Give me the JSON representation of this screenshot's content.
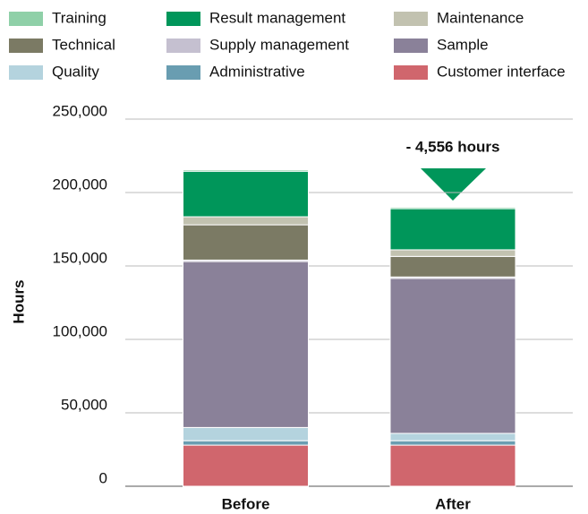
{
  "chart_data": {
    "type": "stacked_bar",
    "y_label": "Hours",
    "categories": [
      "Before",
      "After"
    ],
    "series": [
      {
        "name": "Training",
        "color": "#8fd0a8",
        "values": [
          1000,
          1000
        ]
      },
      {
        "name": "Result management",
        "color": "#00965a",
        "values": [
          31000,
          28000
        ]
      },
      {
        "name": "Maintenance",
        "color": "#c2c2b0",
        "values": [
          5500,
          4500
        ]
      },
      {
        "name": "Technical",
        "color": "#7b7a64",
        "values": [
          24000,
          14000
        ]
      },
      {
        "name": "Supply management",
        "color": "#c5c0d0",
        "values": [
          1000,
          1000
        ]
      },
      {
        "name": "Sample",
        "color": "#8a8199",
        "values": [
          113000,
          105500
        ]
      },
      {
        "name": "Quality",
        "color": "#b4d3de",
        "values": [
          9000,
          5000
        ]
      },
      {
        "name": "Administrative",
        "color": "#699db1",
        "values": [
          3000,
          3000
        ]
      },
      {
        "name": "Customer interface",
        "color": "#d0666d",
        "values": [
          28000,
          28000
        ]
      }
    ],
    "ylim": [
      0,
      250000
    ],
    "yticks": [
      0,
      {
        "value": 50000,
        "label": "50,000"
      },
      {
        "value": 100000,
        "label": "100,000"
      },
      {
        "value": 150000,
        "label": "150,000"
      },
      {
        "value": 200000,
        "label": "200,000"
      },
      {
        "value": 250000,
        "label": "250,000"
      }
    ],
    "grid": true,
    "annotation": "- 4,556 hours"
  }
}
